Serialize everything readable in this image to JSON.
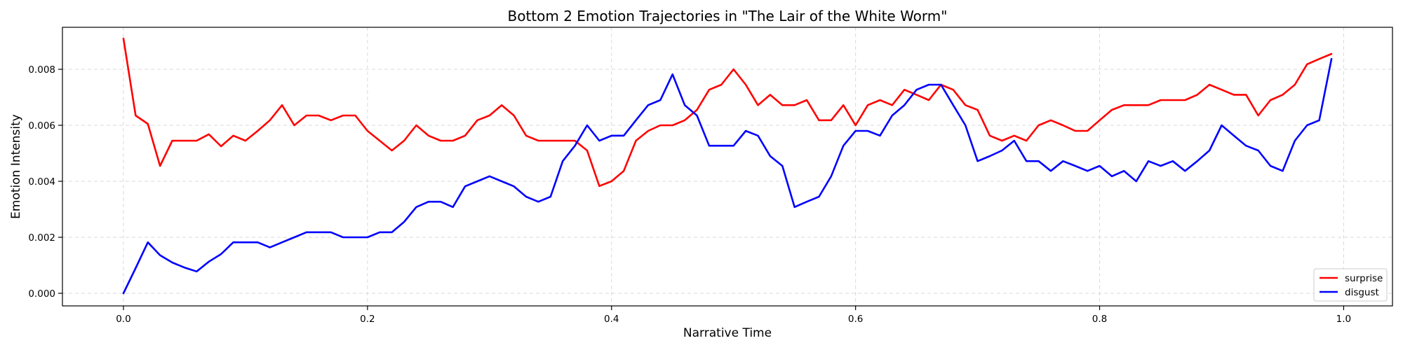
{
  "chart_data": {
    "type": "line",
    "title": "Bottom 2 Emotion Trajectories in \"The Lair of the White Worm\"",
    "xlabel": "Narrative Time",
    "ylabel": "Emotion Intensity",
    "xlim": [
      -0.05,
      1.04
    ],
    "ylim": [
      -0.00045,
      0.0095
    ],
    "xticks": [
      0.0,
      0.2,
      0.4,
      0.6,
      0.8,
      1.0
    ],
    "xtick_labels": [
      "0.0",
      "0.2",
      "0.4",
      "0.6",
      "0.8",
      "1.0"
    ],
    "yticks": [
      0.0,
      0.002,
      0.004,
      0.006,
      0.008
    ],
    "ytick_labels": [
      "0.000",
      "0.002",
      "0.004",
      "0.006",
      "0.008"
    ],
    "grid": true,
    "legend_position": "bottom-right",
    "series": [
      {
        "name": "surprise",
        "color": "#ff0000",
        "x": [
          0.0,
          0.01,
          0.02,
          0.03,
          0.04,
          0.05,
          0.06,
          0.07,
          0.08,
          0.09,
          0.1,
          0.11,
          0.12,
          0.13,
          0.14,
          0.15,
          0.16,
          0.17,
          0.18,
          0.19,
          0.2,
          0.21,
          0.22,
          0.23,
          0.24,
          0.25,
          0.26,
          0.27,
          0.28,
          0.29,
          0.3,
          0.31,
          0.32,
          0.33,
          0.34,
          0.35,
          0.36,
          0.37,
          0.38,
          0.39,
          0.4,
          0.41,
          0.42,
          0.43,
          0.44,
          0.45,
          0.46,
          0.47,
          0.48,
          0.49,
          0.5,
          0.51,
          0.52,
          0.53,
          0.54,
          0.55,
          0.56,
          0.57,
          0.58,
          0.59,
          0.6,
          0.61,
          0.62,
          0.63,
          0.64,
          0.65,
          0.66,
          0.67,
          0.68,
          0.69,
          0.7,
          0.71,
          0.72,
          0.73,
          0.74,
          0.75,
          0.76,
          0.77,
          0.78,
          0.79,
          0.8,
          0.81,
          0.82,
          0.83,
          0.84,
          0.85,
          0.86,
          0.87,
          0.88,
          0.89,
          0.9,
          0.91,
          0.92,
          0.93,
          0.94,
          0.95,
          0.96,
          0.97,
          0.98,
          0.99
        ],
        "y": [
          0.0091,
          0.00635,
          0.00605,
          0.00455,
          0.00545,
          0.00545,
          0.00545,
          0.00568,
          0.00525,
          0.00563,
          0.00545,
          0.0058,
          0.00618,
          0.00672,
          0.006,
          0.00635,
          0.00635,
          0.00618,
          0.00635,
          0.00635,
          0.0058,
          0.00545,
          0.0051,
          0.00545,
          0.006,
          0.00563,
          0.00545,
          0.00545,
          0.00563,
          0.00618,
          0.00635,
          0.00672,
          0.00635,
          0.00563,
          0.00545,
          0.00545,
          0.00545,
          0.00545,
          0.0051,
          0.00383,
          0.004,
          0.00437,
          0.00545,
          0.0058,
          0.006,
          0.006,
          0.00618,
          0.00655,
          0.00727,
          0.00745,
          0.008,
          0.00745,
          0.00672,
          0.00709,
          0.00672,
          0.00672,
          0.0069,
          0.00618,
          0.00618,
          0.00672,
          0.006,
          0.00672,
          0.0069,
          0.00672,
          0.00727,
          0.00709,
          0.0069,
          0.00745,
          0.00727,
          0.00672,
          0.00655,
          0.00563,
          0.00545,
          0.00563,
          0.00545,
          0.006,
          0.00618,
          0.006,
          0.0058,
          0.0058,
          0.00618,
          0.00655,
          0.00672,
          0.00672,
          0.00672,
          0.0069,
          0.0069,
          0.0069,
          0.00709,
          0.00745,
          0.00727,
          0.00709,
          0.00709,
          0.00635,
          0.0069,
          0.00709,
          0.00745,
          0.00818,
          0.00837,
          0.00855
        ]
      },
      {
        "name": "disgust",
        "color": "#0000ff",
        "x": [
          0.0,
          0.01,
          0.02,
          0.03,
          0.04,
          0.05,
          0.06,
          0.07,
          0.08,
          0.09,
          0.1,
          0.11,
          0.12,
          0.13,
          0.14,
          0.15,
          0.16,
          0.17,
          0.18,
          0.19,
          0.2,
          0.21,
          0.22,
          0.23,
          0.24,
          0.25,
          0.26,
          0.27,
          0.28,
          0.29,
          0.3,
          0.31,
          0.32,
          0.33,
          0.34,
          0.35,
          0.36,
          0.37,
          0.38,
          0.39,
          0.4,
          0.41,
          0.42,
          0.43,
          0.44,
          0.45,
          0.46,
          0.47,
          0.48,
          0.49,
          0.5,
          0.51,
          0.52,
          0.53,
          0.54,
          0.55,
          0.56,
          0.57,
          0.58,
          0.59,
          0.6,
          0.61,
          0.62,
          0.63,
          0.64,
          0.65,
          0.66,
          0.67,
          0.68,
          0.69,
          0.7,
          0.71,
          0.72,
          0.73,
          0.74,
          0.75,
          0.76,
          0.77,
          0.78,
          0.79,
          0.8,
          0.81,
          0.82,
          0.83,
          0.84,
          0.85,
          0.86,
          0.87,
          0.88,
          0.89,
          0.9,
          0.91,
          0.92,
          0.93,
          0.94,
          0.95,
          0.96,
          0.97,
          0.98,
          0.99
        ],
        "y": [
          0.0,
          0.0009,
          0.00182,
          0.00136,
          0.0011,
          0.00092,
          0.00078,
          0.00113,
          0.0014,
          0.00182,
          0.00182,
          0.00182,
          0.00164,
          0.00182,
          0.002,
          0.00218,
          0.00218,
          0.00218,
          0.002,
          0.002,
          0.002,
          0.00218,
          0.00218,
          0.00255,
          0.00308,
          0.00327,
          0.00327,
          0.00308,
          0.00382,
          0.004,
          0.00418,
          0.004,
          0.00382,
          0.00345,
          0.00327,
          0.00345,
          0.00472,
          0.00527,
          0.006,
          0.00545,
          0.00563,
          0.00563,
          0.00618,
          0.00672,
          0.0069,
          0.00782,
          0.00672,
          0.00635,
          0.00527,
          0.00527,
          0.00527,
          0.0058,
          0.00563,
          0.0049,
          0.00455,
          0.00308,
          0.00327,
          0.00345,
          0.00418,
          0.00527,
          0.0058,
          0.0058,
          0.00563,
          0.00635,
          0.00672,
          0.00727,
          0.00745,
          0.00745,
          0.00672,
          0.006,
          0.00472,
          0.0049,
          0.0051,
          0.00545,
          0.00472,
          0.00472,
          0.00437,
          0.00472,
          0.00455,
          0.00437,
          0.00455,
          0.00418,
          0.00437,
          0.004,
          0.00472,
          0.00455,
          0.00472,
          0.00437,
          0.00472,
          0.0051,
          0.006,
          0.00563,
          0.00527,
          0.0051,
          0.00455,
          0.00437,
          0.00545,
          0.006,
          0.00618,
          0.00837
        ]
      }
    ]
  }
}
